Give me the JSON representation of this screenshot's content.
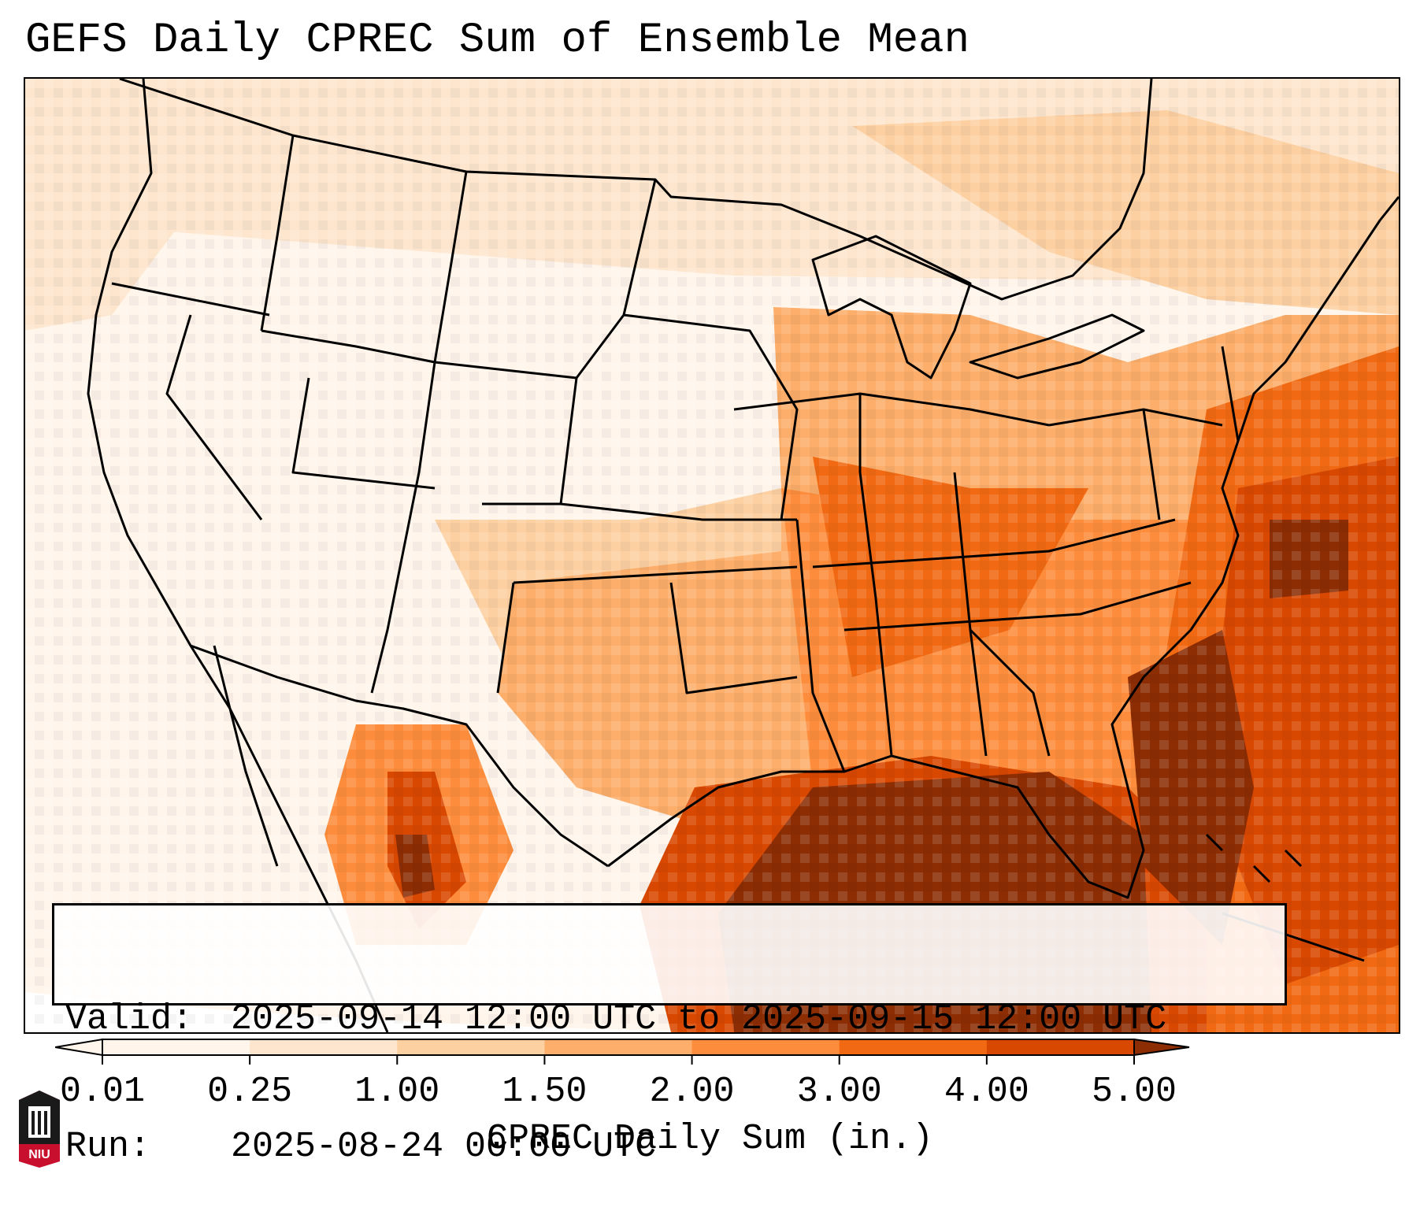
{
  "title": "GEFS Daily CPREC Sum of Ensemble Mean",
  "info": {
    "valid_key": "Valid:",
    "valid_value": "2025-09-14 12:00 UTC to 2025-09-15 12:00 UTC",
    "run_key": "Run:",
    "run_value": "2025-08-24 00:00 UTC"
  },
  "colorbar": {
    "label": "CPREC Daily Sum (in.)",
    "ticks": [
      "0.01",
      "0.25",
      "1.00",
      "1.50",
      "2.00",
      "3.00",
      "4.00",
      "5.00"
    ],
    "colors": [
      "#fff5eb",
      "#fee6ce",
      "#fdd0a2",
      "#fdae6b",
      "#fd8d3c",
      "#f16913",
      "#d94801",
      "#8c2d04"
    ],
    "extend": "both"
  },
  "logo": {
    "text": "NIU",
    "icon": "university-tower-icon"
  },
  "map": {
    "projection": "CONUS Lambert conformal",
    "field": "CPREC daily sum",
    "units": "in."
  }
}
